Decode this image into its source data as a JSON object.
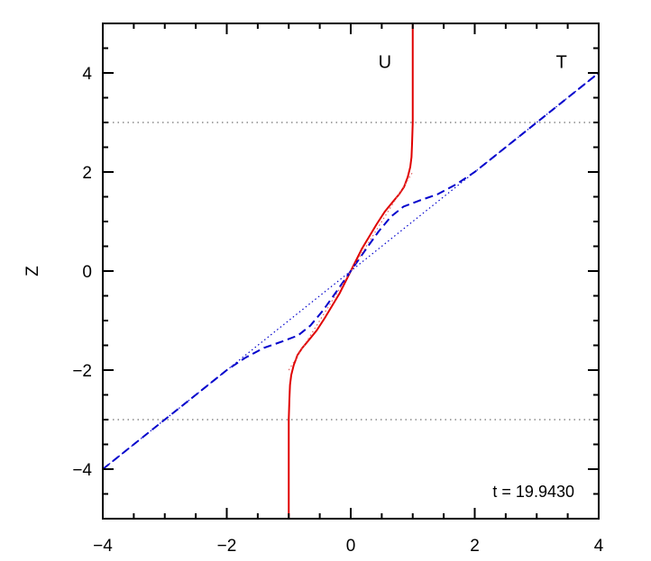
{
  "chart_data": {
    "type": "line",
    "title": "",
    "xlabel": "",
    "ylabel": "Z",
    "xlim": [
      -4,
      4
    ],
    "ylim": [
      -5,
      5
    ],
    "x_ticks": [
      -4,
      -2,
      0,
      2,
      4
    ],
    "y_ticks": [
      -4,
      -2,
      0,
      2,
      4
    ],
    "x_tick_labels": [
      "−4",
      "−2",
      "0",
      "2",
      "4"
    ],
    "y_tick_labels": [
      "−4",
      "−2",
      "0",
      "2",
      "4"
    ],
    "grid": false,
    "reference_lines": {
      "horizontal_dotted": [
        3,
        -3
      ]
    },
    "annotation": "t = 19.9430",
    "series": [
      {
        "name": "U",
        "color": "#e00000",
        "style": "solid",
        "x": [
          -1.0,
          -1.0,
          -0.99,
          -0.98,
          -0.96,
          -0.92,
          -0.86,
          -0.78,
          -0.68,
          -0.55,
          -0.42,
          -0.3,
          -0.18,
          -0.06,
          0.06,
          0.18,
          0.3,
          0.42,
          0.55,
          0.68,
          0.78,
          0.86,
          0.92,
          0.96,
          0.98,
          0.99,
          1.0,
          1.0
        ],
        "y": [
          -5.0,
          -3.0,
          -2.6,
          -2.3,
          -2.1,
          -1.9,
          -1.7,
          -1.55,
          -1.4,
          -1.2,
          -0.95,
          -0.7,
          -0.45,
          -0.15,
          0.15,
          0.45,
          0.7,
          0.95,
          1.2,
          1.4,
          1.55,
          1.7,
          1.9,
          2.1,
          2.3,
          2.6,
          3.0,
          5.0
        ]
      },
      {
        "name": "T",
        "color": "#0000cc",
        "style": "dashed",
        "x": [
          -4.0,
          -3.0,
          -2.5,
          -2.0,
          -1.7,
          -1.4,
          -1.1,
          -0.85,
          -0.65,
          -0.45,
          -0.25,
          0.0,
          0.25,
          0.45,
          0.65,
          0.85,
          1.1,
          1.4,
          1.7,
          2.0,
          2.5,
          3.0,
          4.0
        ],
        "y": [
          -4.0,
          -3.0,
          -2.5,
          -2.0,
          -1.75,
          -1.55,
          -1.42,
          -1.3,
          -1.1,
          -0.8,
          -0.45,
          0.0,
          0.45,
          0.8,
          1.1,
          1.3,
          1.42,
          1.55,
          1.75,
          2.0,
          2.5,
          3.0,
          4.0
        ]
      },
      {
        "name": "",
        "color": "#0000cc",
        "style": "dotted",
        "x": [
          -4.0,
          4.0
        ],
        "y": [
          -4.0,
          4.0
        ]
      },
      {
        "name": "",
        "color": "#e06060",
        "style": "dotted",
        "x": [
          -1.0,
          -0.5,
          0.0,
          0.5,
          1.0
        ],
        "y": [
          -2.0,
          -1.0,
          0.0,
          1.0,
          2.0
        ]
      }
    ],
    "series_labels": [
      {
        "text": "U",
        "x": 0.55,
        "y": 4.1
      },
      {
        "text": "T",
        "x": 3.4,
        "y": 4.1
      }
    ]
  }
}
